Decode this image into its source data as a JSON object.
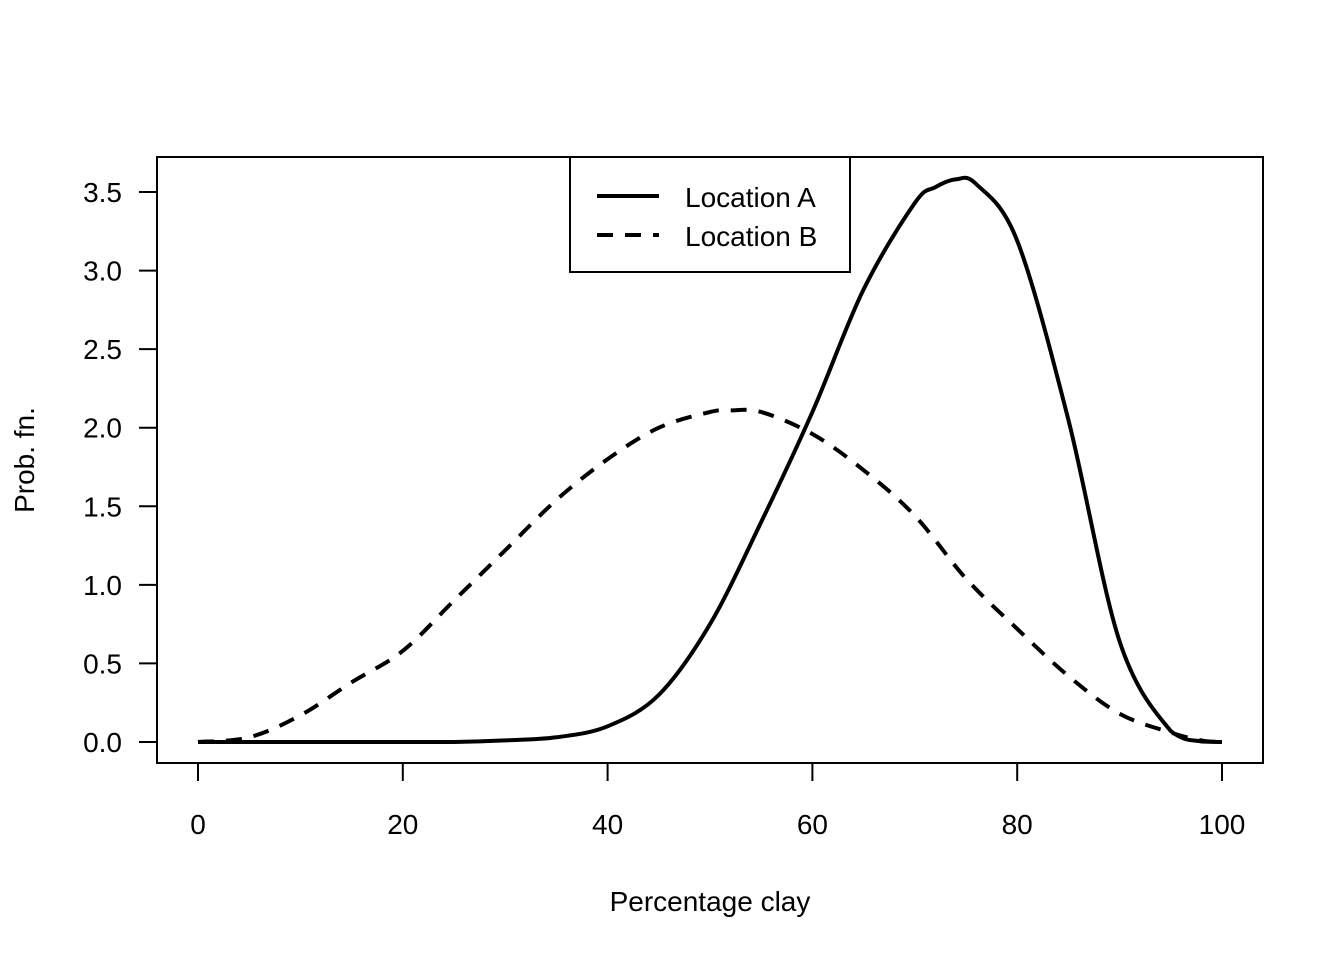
{
  "chart_data": {
    "type": "line",
    "title": "",
    "xlabel": "Percentage clay",
    "ylabel": "Prob. fn.",
    "xlim": [
      0,
      100
    ],
    "ylim": [
      0,
      3.6
    ],
    "x_ticks": [
      0,
      20,
      40,
      60,
      80,
      100
    ],
    "y_ticks": [
      0.0,
      0.5,
      1.0,
      1.5,
      2.0,
      2.5,
      3.0,
      3.5
    ],
    "x_tick_labels": [
      "0",
      "20",
      "40",
      "60",
      "80",
      "100"
    ],
    "y_tick_labels": [
      "0.0",
      "0.5",
      "1.0",
      "1.5",
      "2.0",
      "2.5",
      "3.0",
      "3.5"
    ],
    "grid": false,
    "legend_position": "top-center",
    "series": [
      {
        "name": "Location A",
        "line_style": "solid",
        "color": "#000000",
        "x": [
          0,
          10,
          20,
          25,
          30,
          35,
          40,
          45,
          50,
          55,
          60,
          65,
          70,
          72,
          74,
          76,
          80,
          85,
          90,
          95,
          98,
          100
        ],
        "y": [
          0,
          0,
          0,
          0,
          0.01,
          0.03,
          0.1,
          0.3,
          0.75,
          1.4,
          2.1,
          2.88,
          3.43,
          3.53,
          3.58,
          3.55,
          3.19,
          2.05,
          0.64,
          0.07,
          0.003,
          0
        ]
      },
      {
        "name": "Location B",
        "line_style": "dashed",
        "color": "#000000",
        "x": [
          0,
          5,
          10,
          15,
          20,
          25,
          30,
          35,
          40,
          45,
          50,
          52,
          55,
          60,
          65,
          70,
          75,
          80,
          85,
          90,
          95,
          98,
          100
        ],
        "y": [
          0,
          0.03,
          0.17,
          0.38,
          0.58,
          0.9,
          1.22,
          1.54,
          1.8,
          2.0,
          2.1,
          2.11,
          2.1,
          1.96,
          1.73,
          1.44,
          1.04,
          0.72,
          0.42,
          0.18,
          0.06,
          0.01,
          0
        ]
      }
    ]
  }
}
